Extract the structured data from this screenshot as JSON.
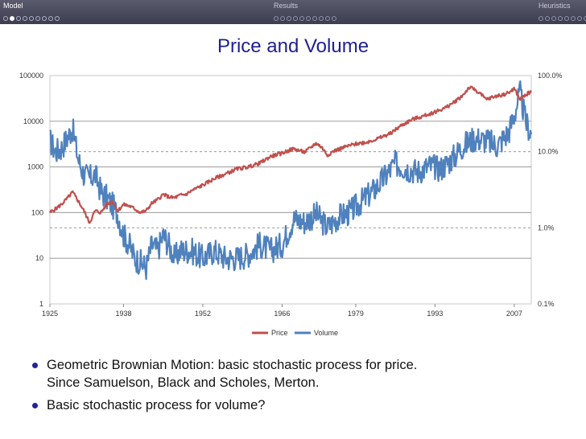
{
  "nav": {
    "sections": [
      {
        "title": "Model",
        "dots": 9,
        "current": 2,
        "active": true
      },
      {
        "title": "Results",
        "dots": 10,
        "current": 0,
        "active": false
      },
      {
        "title": "Heuristics",
        "dots": 9,
        "current": 0,
        "active": false
      }
    ]
  },
  "frame_title": "Price and Volume",
  "bullets": [
    "Geometric Brownian Motion: basic stochastic process for price.\nSince Samuelson, Black and Scholes, Merton.",
    "Basic stochastic process for volume?"
  ],
  "colors": {
    "price": "#c0504d",
    "volume": "#4f81bd",
    "nav_bg": "#4a4a5c",
    "title": "#1f1f8f"
  },
  "chart_data": {
    "type": "line",
    "title": "",
    "xlabel": "",
    "ylabel": "",
    "x_ticks": [
      "1925",
      "1938",
      "1952",
      "1966",
      "1979",
      "1993",
      "2007"
    ],
    "xlim": [
      1925,
      2010
    ],
    "left_axis": {
      "scale": "log",
      "ylim": [
        1,
        100000
      ],
      "ticks": [
        "1",
        "10",
        "100",
        "1000",
        "10000",
        "100000"
      ]
    },
    "right_axis": {
      "scale": "log",
      "ylim": [
        0.001,
        1
      ],
      "ticks": [
        "0.1%",
        "1.0%",
        "10.0%",
        "100.0%"
      ]
    },
    "gridlines_left": [
      10,
      100,
      1000,
      10000
    ],
    "dashed_right": [
      0.01,
      0.1
    ],
    "legend": [
      "Price",
      "Volume"
    ],
    "legend_position": "bottom",
    "series": [
      {
        "name": "Price",
        "axis": "left",
        "color": "#c0504d",
        "x": [
          1925,
          1926,
          1927,
          1928,
          1929,
          1930,
          1931,
          1932,
          1933,
          1934,
          1935,
          1936,
          1937,
          1938,
          1939,
          1940,
          1941,
          1942,
          1943,
          1944,
          1945,
          1946,
          1947,
          1948,
          1949,
          1950,
          1952,
          1954,
          1956,
          1958,
          1960,
          1962,
          1964,
          1966,
          1968,
          1970,
          1972,
          1973,
          1974,
          1975,
          1977,
          1979,
          1981,
          1983,
          1985,
          1987,
          1989,
          1991,
          1993,
          1995,
          1997,
          1998,
          1999,
          2000,
          2001,
          2002,
          2003,
          2004,
          2005,
          2006,
          2007,
          2008,
          2009,
          2010
        ],
        "values": [
          100,
          120,
          150,
          200,
          280,
          180,
          110,
          60,
          110,
          100,
          150,
          180,
          110,
          150,
          140,
          120,
          100,
          110,
          160,
          190,
          250,
          220,
          210,
          240,
          250,
          300,
          400,
          550,
          700,
          900,
          1000,
          1200,
          1700,
          2000,
          2500,
          2100,
          3300,
          2700,
          1800,
          2200,
          2700,
          3200,
          3500,
          4200,
          5300,
          8000,
          11000,
          13000,
          16000,
          20000,
          30000,
          38000,
          55000,
          50000,
          40000,
          30000,
          33000,
          36000,
          38000,
          42000,
          52000,
          30000,
          38000,
          45000
        ]
      },
      {
        "name": "Volume",
        "axis": "right",
        "color": "#4f81bd",
        "x": [
          1925,
          1926,
          1927,
          1928,
          1929,
          1930,
          1931,
          1932,
          1933,
          1934,
          1935,
          1936,
          1937,
          1938,
          1939,
          1940,
          1941,
          1942,
          1943,
          1944,
          1945,
          1946,
          1947,
          1948,
          1950,
          1952,
          1954,
          1956,
          1958,
          1960,
          1962,
          1964,
          1966,
          1968,
          1970,
          1972,
          1974,
          1976,
          1978,
          1980,
          1982,
          1984,
          1986,
          1988,
          1990,
          1992,
          1994,
          1996,
          1998,
          2000,
          2002,
          2004,
          2006,
          2007,
          2008,
          2009,
          2010
        ],
        "values": [
          0.14,
          0.1,
          0.11,
          0.15,
          0.2,
          0.08,
          0.05,
          0.045,
          0.05,
          0.03,
          0.025,
          0.02,
          0.015,
          0.008,
          0.006,
          0.004,
          0.0035,
          0.003,
          0.006,
          0.005,
          0.008,
          0.006,
          0.004,
          0.005,
          0.005,
          0.004,
          0.005,
          0.004,
          0.004,
          0.0045,
          0.006,
          0.005,
          0.006,
          0.013,
          0.012,
          0.015,
          0.01,
          0.014,
          0.016,
          0.022,
          0.03,
          0.045,
          0.07,
          0.06,
          0.055,
          0.065,
          0.06,
          0.08,
          0.12,
          0.15,
          0.14,
          0.12,
          0.18,
          0.3,
          0.6,
          0.25,
          0.17
        ]
      }
    ]
  }
}
